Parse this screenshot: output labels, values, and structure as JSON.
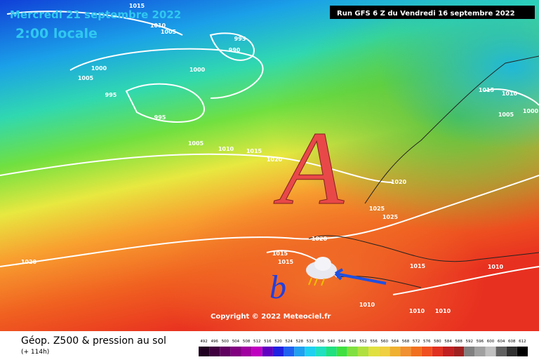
{
  "header": {
    "date": "Mercredi 21 septembre 2022",
    "local_time": "2:00 locale",
    "run": "Run GFS 6 Z du Vendredi 16 septembre 2022"
  },
  "map": {
    "high_symbol": "A",
    "low_symbol": "b",
    "copyright": "Copyright © 2022 Meteociel.fr",
    "isobar_labels": [
      "1015",
      "1010",
      "1005",
      "995",
      "990",
      "1005",
      "1000",
      "1000",
      "995",
      "995",
      "1005",
      "1010",
      "1015",
      "1020",
      "1015",
      "1010",
      "1005",
      "1000",
      "1020",
      "1025",
      "1025",
      "1020",
      "1015",
      "1015",
      "1015",
      "1010",
      "1010",
      "1010",
      "1010",
      "1020"
    ]
  },
  "legend": {
    "title": "Géop. Z500 & pression au sol",
    "lead": "(+ 114h)",
    "scale": [
      492,
      496,
      500,
      504,
      508,
      512,
      516,
      520,
      524,
      528,
      532,
      536,
      540,
      544,
      548,
      552,
      556,
      560,
      564,
      568,
      572,
      576,
      580,
      584,
      588,
      592,
      596,
      600,
      604,
      608,
      612
    ]
  }
}
